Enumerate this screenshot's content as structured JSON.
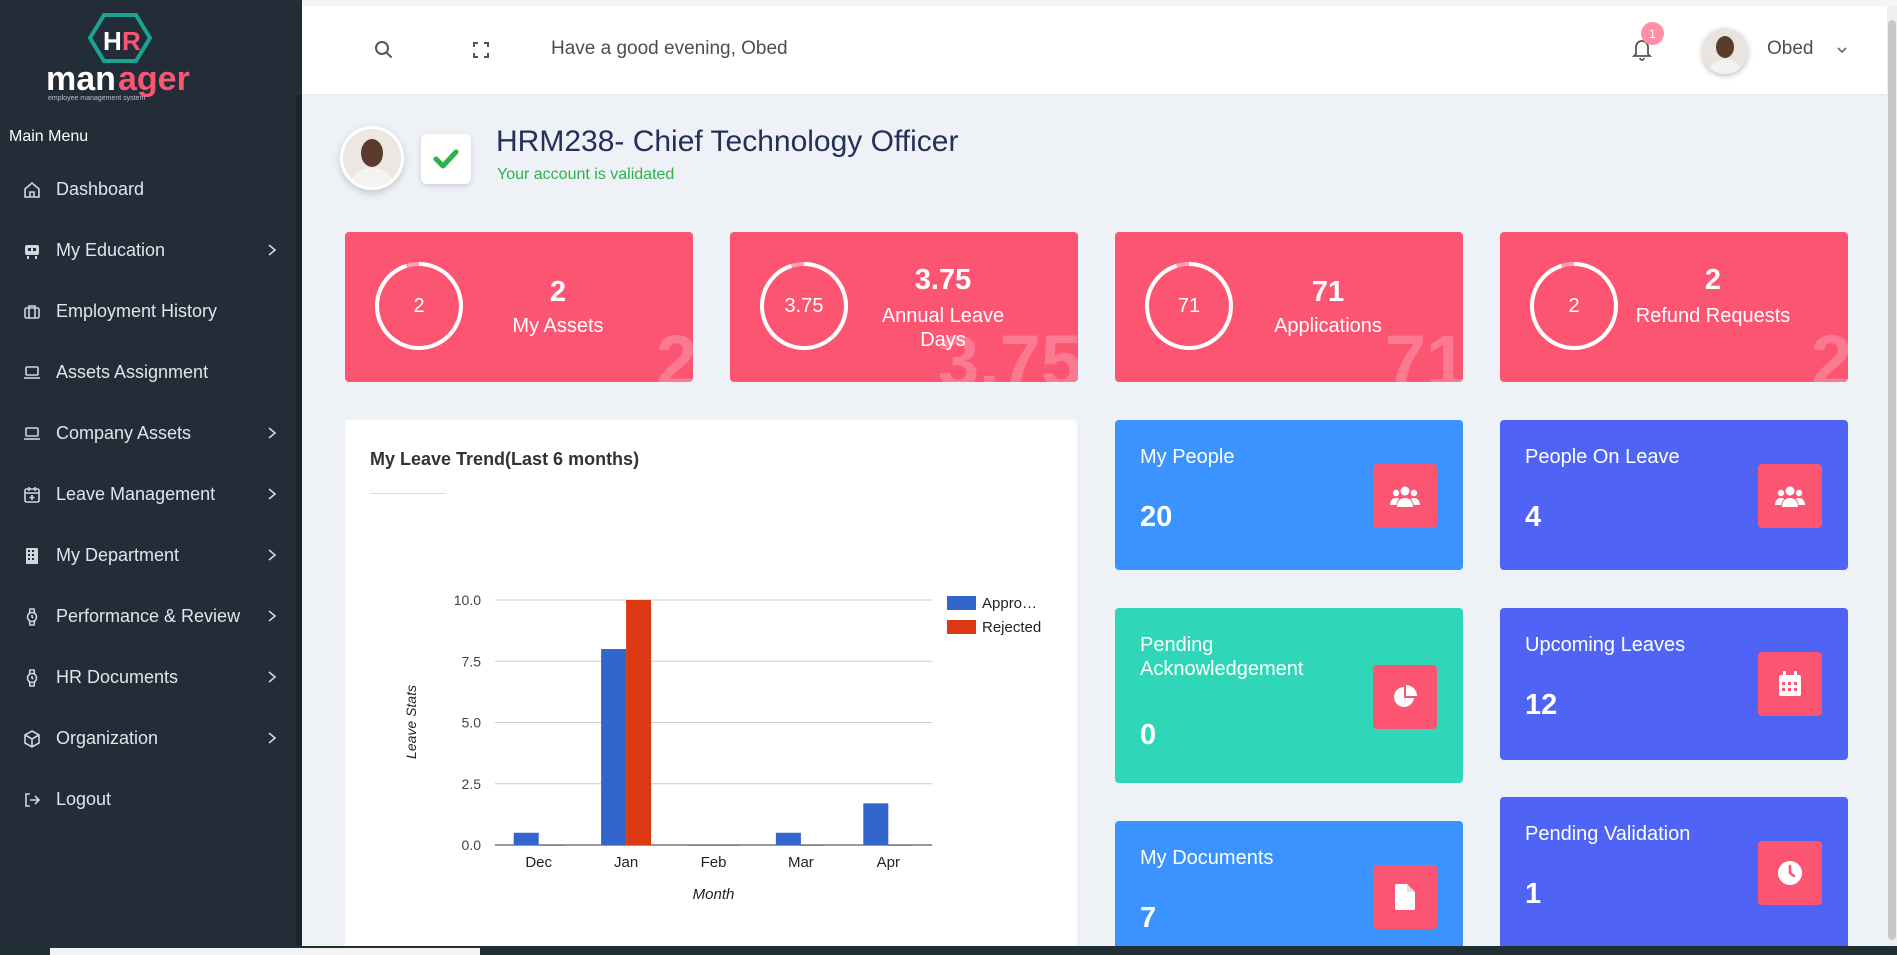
{
  "logo": {
    "top_letters": "HR",
    "word": "manager",
    "tagline": "employee management system"
  },
  "sidebar": {
    "section_title": "Main Menu",
    "items": [
      {
        "label": "Dashboard",
        "icon": "home-icon",
        "has_submenu": false
      },
      {
        "label": "My Education",
        "icon": "graduation-icon",
        "has_submenu": true
      },
      {
        "label": "Employment History",
        "icon": "briefcase-icon",
        "has_submenu": false
      },
      {
        "label": "Assets Assignment",
        "icon": "laptop-icon",
        "has_submenu": false
      },
      {
        "label": "Company Assets",
        "icon": "laptop-icon",
        "has_submenu": true
      },
      {
        "label": "Leave Management",
        "icon": "calendar-plus-icon",
        "has_submenu": true
      },
      {
        "label": "My Department",
        "icon": "building-icon",
        "has_submenu": true
      },
      {
        "label": "Performance & Review",
        "icon": "watch-icon",
        "has_submenu": true
      },
      {
        "label": "HR Documents",
        "icon": "watch-icon",
        "has_submenu": true
      },
      {
        "label": "Organization",
        "icon": "cube-icon",
        "has_submenu": true
      },
      {
        "label": "Logout",
        "icon": "logout-icon",
        "has_submenu": false
      }
    ]
  },
  "header": {
    "greeting": "Have a good evening, Obed",
    "notification_count": "1",
    "user_name": "Obed"
  },
  "profile": {
    "title": "HRM238- Chief Technology Officer",
    "status": "Your account is validated"
  },
  "stat_cards": [
    {
      "ring_value": "2",
      "value": "2",
      "label": "My Assets",
      "ghost": "2",
      "progress": 0.05
    },
    {
      "ring_value": "3.75",
      "value": "3.75",
      "label": "Annual Leave Days",
      "ghost": "3.75",
      "progress": 0.05
    },
    {
      "ring_value": "71",
      "value": "71",
      "label": "Applications",
      "ghost": "71",
      "progress": 0.05
    },
    {
      "ring_value": "2",
      "value": "2",
      "label": "Refund Requests",
      "ghost": "2",
      "progress": 0.05
    }
  ],
  "info_cards": [
    {
      "title": "My People",
      "value": "20",
      "color": "#3b93ff",
      "icon": "users-icon"
    },
    {
      "title": "People On Leave",
      "value": "4",
      "color": "#4f63f4",
      "icon": "users-icon"
    },
    {
      "title": "Pending Acknowledgement",
      "value": "0",
      "color": "#2fd6b7",
      "icon": "pie-chart-icon"
    },
    {
      "title": "Upcoming Leaves",
      "value": "12",
      "color": "#4f63f4",
      "icon": "calendar-icon"
    },
    {
      "title": "My Documents",
      "value": "7",
      "color": "#3b93ff",
      "icon": "document-icon"
    },
    {
      "title": "Pending Validation",
      "value": "1",
      "color": "#4f63f4",
      "icon": "clock-icon"
    }
  ],
  "chart_card": {
    "title": "My Leave Trend(Last 6 months)"
  },
  "chart_data": {
    "type": "bar",
    "categories": [
      "Dec",
      "Jan",
      "Feb",
      "Mar",
      "Apr"
    ],
    "series": [
      {
        "name": "Appro…",
        "color": "#3366cc",
        "values": [
          0.5,
          8,
          0,
          0.5,
          1.7
        ]
      },
      {
        "name": "Rejected",
        "color": "#dc3912",
        "values": [
          0,
          10,
          0,
          0,
          0
        ]
      }
    ],
    "yticks": [
      "0.0",
      "2.5",
      "5.0",
      "7.5",
      "10.0"
    ],
    "ylim": [
      0,
      10
    ],
    "xlabel": "Month",
    "ylabel": "Leave Stats",
    "grid": true,
    "legend": "right"
  },
  "colors": {
    "accent": "#fc5572",
    "sidebar": "#232d38",
    "success": "#2bb24c"
  }
}
